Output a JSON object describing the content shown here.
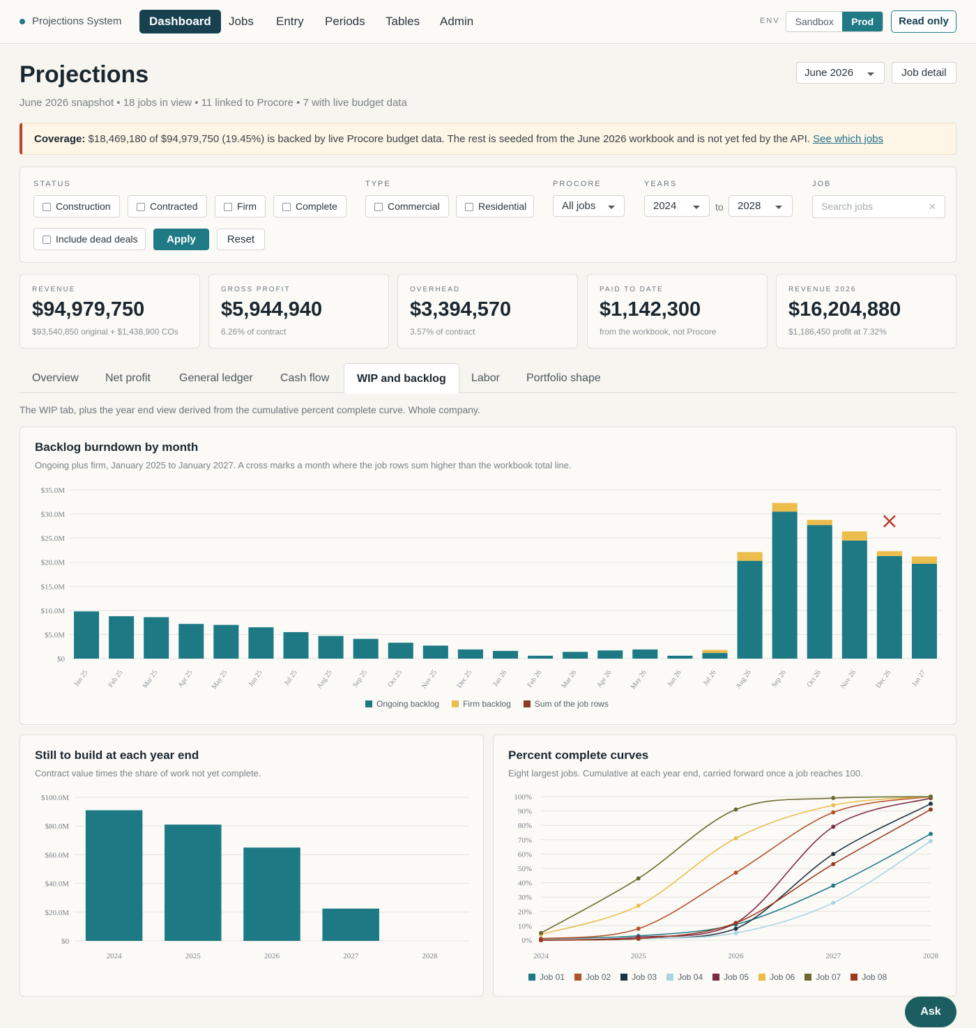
{
  "nav": {
    "brand": "Projections System",
    "tabs": [
      "Dashboard",
      "Jobs",
      "Entry",
      "Periods",
      "Tables",
      "Admin"
    ],
    "active_tab": "Dashboard",
    "env_label": "ENV",
    "env_options": [
      "Sandbox",
      "Prod"
    ],
    "env_selected": "Prod",
    "read_only": "Read only"
  },
  "header": {
    "title": "Projections",
    "subtitle": "June 2026 snapshot • 18 jobs in view • 11 linked to Procore • 7 with live budget data",
    "month_select": "June 2026",
    "job_detail": "Job detail"
  },
  "banner": {
    "label": "Coverage:",
    "text": " $18,469,180 of $94,979,750 (19.45%) is backed by live Procore budget data. The rest is seeded from the June 2026 workbook and is not yet fed by the API. ",
    "link": "See which jobs"
  },
  "filters": {
    "status_label": "STATUS",
    "status_options": [
      "Construction",
      "Contracted",
      "Firm",
      "Complete"
    ],
    "type_label": "TYPE",
    "type_options": [
      "Commercial",
      "Residential"
    ],
    "procore_label": "PROCORE",
    "procore_value": "All jobs",
    "years_label": "YEARS",
    "year_from": "2024",
    "to": "to",
    "year_to": "2028",
    "job_label": "JOB",
    "search_placeholder": "Search jobs",
    "dead_deals": "Include dead deals",
    "apply": "Apply",
    "reset": "Reset"
  },
  "kpis": [
    {
      "label": "REVENUE",
      "value": "$94,979,750",
      "sub": "$93,540,850 original + $1,438,900 COs"
    },
    {
      "label": "GROSS PROFIT",
      "value": "$5,944,940",
      "sub": "6.26% of contract"
    },
    {
      "label": "OVERHEAD",
      "value": "$3,394,570",
      "sub": "3.57% of contract"
    },
    {
      "label": "PAID TO DATE",
      "value": "$1,142,300",
      "sub": "from the workbook, not Procore"
    },
    {
      "label": "REVENUE 2026",
      "value": "$16,204,880",
      "sub": "$1,186,450 profit at 7.32%"
    }
  ],
  "tabs": [
    "Overview",
    "Net profit",
    "General ledger",
    "Cash flow",
    "WIP and backlog",
    "Labor",
    "Portfolio shape"
  ],
  "active_tab": "WIP and backlog",
  "tab_description": "The WIP tab, plus the year end view derived from the cumulative percent complete curve. Whole company.",
  "colors": {
    "teal": "#1d7a85",
    "gold": "#ecbd4c",
    "rust": "#8c3b22",
    "cross": "#c0392b"
  },
  "panels": {
    "burndown": {
      "title": "Backlog burndown by month",
      "subtitle": "Ongoing plus firm, January 2025 to January 2027. A cross marks a month where the job rows sum higher than the workbook total line."
    },
    "yearend": {
      "title": "Still to build at each year end",
      "subtitle": "Contract value times the share of work not yet complete."
    },
    "curves": {
      "title": "Percent complete curves",
      "subtitle": "Eight largest jobs. Cumulative at each year end, carried forward once a job reaches 100."
    }
  },
  "chart_data": [
    {
      "type": "bar",
      "stacked": true,
      "categories": [
        "Jan 25",
        "Feb 25",
        "Mar 25",
        "Apr 25",
        "May 25",
        "Jun 25",
        "Jul 25",
        "Aug 25",
        "Sep 25",
        "Oct 25",
        "Nov 25",
        "Dec 25",
        "Jan 26",
        "Feb 26",
        "Mar 26",
        "Apr 26",
        "May 26",
        "Jun 26",
        "Jul 26",
        "Aug 26",
        "Sep 26",
        "Oct 26",
        "Nov 26",
        "Dec 26",
        "Jan 27"
      ],
      "series": [
        {
          "name": "Ongoing backlog",
          "values": [
            9.8,
            8.8,
            8.6,
            7.2,
            7.0,
            6.5,
            5.5,
            4.7,
            4.1,
            3.3,
            2.7,
            1.9,
            1.6,
            0.6,
            1.4,
            1.7,
            1.9,
            0.6,
            1.2,
            20.3,
            30.5,
            27.7,
            24.5,
            21.3,
            19.7
          ]
        },
        {
          "name": "Firm backlog",
          "values": [
            0,
            0,
            0,
            0,
            0,
            0,
            0,
            0,
            0,
            0,
            0,
            0,
            0,
            0,
            0,
            0,
            0,
            0,
            0.6,
            1.8,
            1.8,
            1.1,
            1.9,
            1.0,
            1.5
          ]
        }
      ],
      "legend": [
        "Ongoing backlog",
        "Firm backlog",
        "Sum of the job rows"
      ],
      "cross_marks": [
        {
          "category": "Dec 26",
          "value": 28.5
        }
      ],
      "ylim": [
        0,
        35
      ],
      "yticks": [
        "$0",
        "$5.0M",
        "$10.0M",
        "$15.0M",
        "$20.0M",
        "$25.0M",
        "$30.0M",
        "$35.0M"
      ],
      "grid": true,
      "legend_position": "bottom"
    },
    {
      "type": "bar",
      "categories": [
        "2024",
        "2025",
        "2026",
        "2027",
        "2028"
      ],
      "values": [
        91,
        81,
        65,
        22.5,
        0
      ],
      "ylim": [
        0,
        100
      ],
      "yticks": [
        "$0",
        "$20.0M",
        "$40.0M",
        "$60.0M",
        "$80.0M",
        "$100.0M"
      ],
      "grid": true
    },
    {
      "type": "line",
      "x": [
        "2024",
        "2025",
        "2026",
        "2027",
        "2028"
      ],
      "series": [
        {
          "name": "Job 01",
          "color": "#1d7a85",
          "values": [
            1,
            3,
            11,
            38,
            74
          ]
        },
        {
          "name": "Job 02",
          "color": "#b3532b",
          "values": [
            1,
            8,
            47,
            89,
            100
          ]
        },
        {
          "name": "Job 03",
          "color": "#1e3441",
          "values": [
            0,
            1,
            8,
            60,
            95
          ]
        },
        {
          "name": "Job 04",
          "color": "#a9d4e2",
          "values": [
            0,
            1,
            5,
            26,
            69
          ]
        },
        {
          "name": "Job 05",
          "color": "#7d2a45",
          "values": [
            0,
            2,
            12,
            79,
            99
          ]
        },
        {
          "name": "Job 06",
          "color": "#ecbd4c",
          "values": [
            4,
            24,
            71,
            94,
            100
          ]
        },
        {
          "name": "Job 07",
          "color": "#6b6a2c",
          "values": [
            5,
            43,
            91,
            99,
            100
          ]
        },
        {
          "name": "Job 08",
          "color": "#9a3a1f",
          "values": [
            0,
            1,
            12,
            53,
            91
          ]
        }
      ],
      "ylim": [
        0,
        100
      ],
      "yticks": [
        "0%",
        "10%",
        "20%",
        "30%",
        "40%",
        "50%",
        "60%",
        "70%",
        "80%",
        "90%",
        "100%"
      ],
      "grid": true,
      "legend_position": "bottom"
    }
  ],
  "ask": "Ask"
}
